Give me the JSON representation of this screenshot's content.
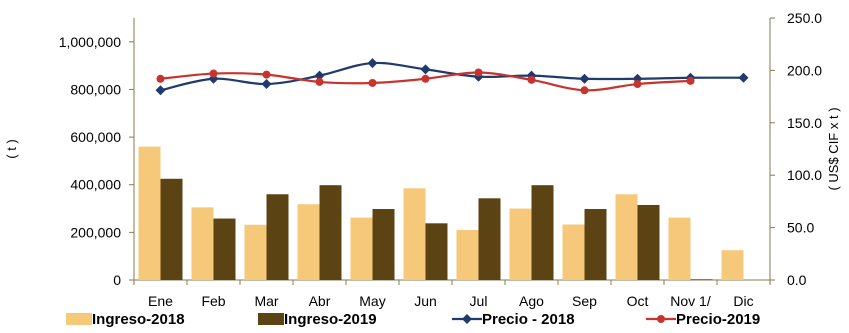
{
  "chart_data": {
    "type": "bar",
    "categories": [
      "Ene",
      "Feb",
      "Mar",
      "Abr",
      "May",
      "Jun",
      "Jul",
      "Ago",
      "Sep",
      "Oct",
      "Nov 1/",
      "Dic"
    ],
    "ylabel": "( t )",
    "y2label": "( US$ CIF x t )",
    "ylim": [
      0,
      1100000
    ],
    "y2lim": [
      0,
      250
    ],
    "yticks": [
      "0",
      "200,000",
      "400,000",
      "600,000",
      "800,000",
      "1,000,000"
    ],
    "y2ticks": [
      "0.0",
      "50.0",
      "100.0",
      "150.0",
      "200.0",
      "250.0"
    ],
    "grid": false,
    "legend_position": "bottom",
    "series": [
      {
        "name": "Ingreso-2018",
        "kind": "bar",
        "axis": "left",
        "color": "#F6C97A",
        "values": [
          560000,
          305000,
          232000,
          318000,
          262000,
          385000,
          210000,
          300000,
          233000,
          360000,
          262000,
          125000
        ]
      },
      {
        "name": "Ingreso-2019",
        "kind": "bar",
        "axis": "left",
        "color": "#5C4314",
        "values": [
          425000,
          258000,
          360000,
          398000,
          298000,
          238000,
          343000,
          398000,
          298000,
          315000,
          3000,
          null
        ]
      },
      {
        "name": "Precio - 2018",
        "kind": "line",
        "axis": "right",
        "color": "#1F3A6E",
        "marker": "diamond",
        "values": [
          181,
          192,
          187,
          195,
          207,
          201,
          194,
          195,
          192,
          192,
          193,
          193
        ]
      },
      {
        "name": "Precio-2019",
        "kind": "line",
        "axis": "right",
        "color": "#C8332E",
        "marker": "circle",
        "values": [
          192,
          197,
          196,
          189,
          188,
          192,
          198,
          191,
          181,
          187,
          190,
          null
        ]
      }
    ]
  }
}
